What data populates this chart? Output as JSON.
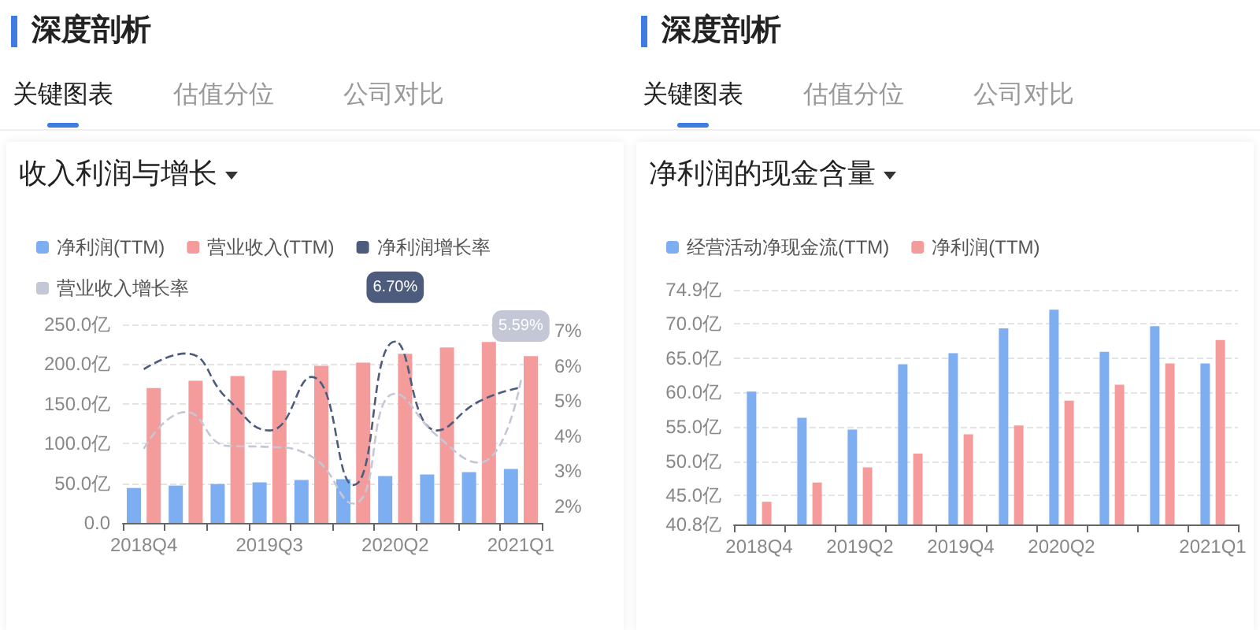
{
  "chart_data": [
    {
      "type": "bar",
      "title": "收入利润与增长",
      "annotations": [
        "深度剖析",
        "关键图表",
        "估值分位",
        "公司对比"
      ],
      "categories": [
        "2018Q4",
        null,
        null,
        "2019Q3",
        null,
        null,
        "2020Q2",
        null,
        null,
        "2021Q1"
      ],
      "series": [
        {
          "name": "净利润(TTM)",
          "color": "#7eaef2",
          "values": [
            44,
            47,
            49,
            51,
            54,
            55,
            59,
            61,
            64,
            68
          ]
        },
        {
          "name": "营业收入(TTM)",
          "color": "#f49c9c",
          "values": [
            170,
            179,
            185,
            192,
            198,
            202,
            213,
            221,
            228,
            210
          ]
        },
        {
          "name": "净利润增长率",
          "type": "line",
          "axis": "y2",
          "color": "#4d5b7c",
          "line_style": "dashed",
          "values": [
            5.91,
            6.36,
            5.06,
            4.16,
            5.69,
            2.6,
            6.7,
            4.16,
            4.99,
            5.39
          ],
          "value_labels": [
            null,
            null,
            null,
            null,
            null,
            null,
            "6.70%",
            null,
            null,
            null
          ]
        },
        {
          "name": "营业收入增长率",
          "type": "line",
          "axis": "y2",
          "color": "#c4c8d6",
          "line_style": "dashed",
          "values": [
            3.64,
            4.69,
            3.72,
            3.69,
            3.42,
            2.07,
            5.21,
            4.01,
            3.24,
            5.59
          ],
          "value_labels": [
            null,
            null,
            null,
            null,
            null,
            null,
            null,
            null,
            null,
            "5.59%"
          ]
        }
      ],
      "ylim": [
        0,
        250
      ],
      "yticks": [
        {
          "value": 0,
          "label": "0.0"
        },
        {
          "value": 50,
          "label": "50.0亿"
        },
        {
          "value": 100,
          "label": "100.0亿"
        },
        {
          "value": 150,
          "label": "150.0亿"
        },
        {
          "value": 200,
          "label": "200.0亿"
        },
        {
          "value": 250,
          "label": "250.0亿"
        }
      ],
      "y2lim": [
        1.52,
        7.19
      ],
      "y2ticks": [
        {
          "value": 2,
          "label": "2%"
        },
        {
          "value": 3,
          "label": "3%"
        },
        {
          "value": 4,
          "label": "4%"
        },
        {
          "value": 5,
          "label": "5%"
        },
        {
          "value": 6,
          "label": "6%"
        },
        {
          "value": 7,
          "label": "7%"
        }
      ],
      "grid": "y",
      "legend": "top left"
    },
    {
      "type": "bar",
      "title": "净利润的现金含量",
      "annotations": [
        "深度剖析",
        "关键图表",
        "估值分位",
        "公司对比"
      ],
      "categories": [
        "2018Q4",
        null,
        "2019Q2",
        null,
        "2019Q4",
        null,
        "2020Q2",
        null,
        null,
        "2021Q1"
      ],
      "series": [
        {
          "name": "经营活动净现金流(TTM)",
          "color": "#7eaef2",
          "values": [
            60.1,
            56.3,
            54.6,
            64.1,
            65.7,
            69.3,
            72.0,
            65.9,
            69.6,
            64.2
          ]
        },
        {
          "name": "净利润(TTM)",
          "color": "#f49c9c",
          "values": [
            44.1,
            46.9,
            49.1,
            51.1,
            53.9,
            55.2,
            58.8,
            61.1,
            64.2,
            67.6
          ]
        }
      ],
      "ylim": [
        40.8,
        74.9
      ],
      "yticks": [
        {
          "value": 40.8,
          "label": "40.8亿"
        },
        {
          "value": 45,
          "label": "45.0亿"
        },
        {
          "value": 50,
          "label": "50.0亿"
        },
        {
          "value": 55,
          "label": "55.0亿"
        },
        {
          "value": 60,
          "label": "60.0亿"
        },
        {
          "value": 65,
          "label": "65.0亿"
        },
        {
          "value": 70,
          "label": "70.0亿"
        },
        {
          "value": 74.9,
          "label": "74.9亿"
        }
      ],
      "grid": "y",
      "legend": "top left"
    }
  ]
}
